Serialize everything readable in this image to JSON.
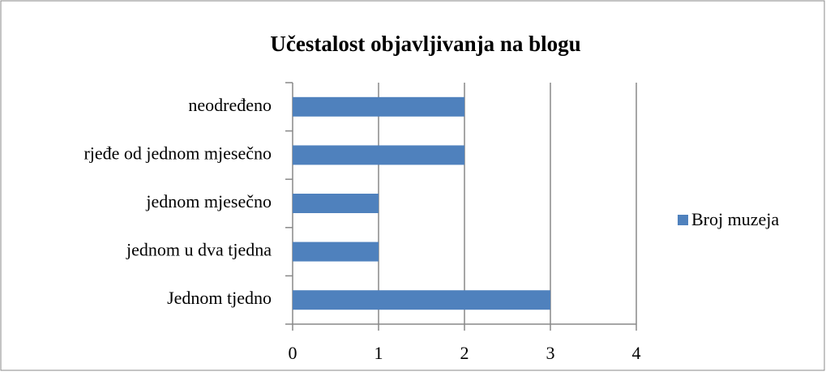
{
  "chart_data": {
    "type": "bar",
    "orientation": "horizontal",
    "title": "Učestalost objavljivanja na blogu",
    "categories": [
      "Jednom tjedno",
      "jednom u dva tjedna",
      "jednom mjesečno",
      "rjeđe od jednom mjesečno",
      "neodređeno"
    ],
    "series": [
      {
        "name": "Broj muzeja",
        "color": "#4f81bd",
        "values": [
          3,
          1,
          1,
          2,
          2
        ]
      }
    ],
    "xlim": [
      0,
      4
    ],
    "xticks": [
      0,
      1,
      2,
      3,
      4
    ],
    "grid": true,
    "legend": "right"
  }
}
